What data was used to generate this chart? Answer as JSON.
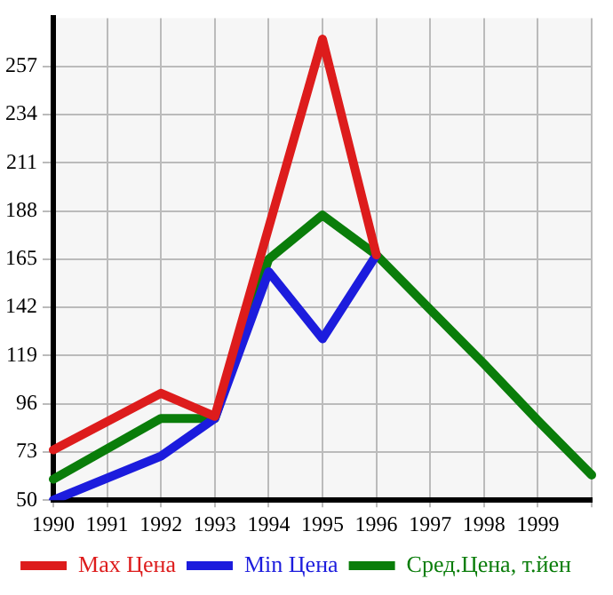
{
  "chart_data": {
    "type": "line",
    "categories": [
      "1990",
      "1991",
      "1992",
      "1993",
      "1994",
      "1995",
      "1996",
      "1997",
      "1998",
      "1999",
      null
    ],
    "series": [
      {
        "name": "Max Цена",
        "color": "#dd1c1c",
        "values": [
          74,
          null,
          101,
          90,
          null,
          270,
          167,
          null,
          null,
          null,
          null
        ]
      },
      {
        "name": "Min Цена",
        "color": "#1c1cdd",
        "values": [
          50,
          null,
          71,
          89,
          159,
          127,
          167,
          null,
          null,
          null,
          null
        ]
      },
      {
        "name": "Сред.Цена, т.йен",
        "color": "#0a7d0a",
        "values": [
          60,
          null,
          89,
          89,
          165,
          186,
          167,
          141,
          115,
          88,
          62
        ]
      }
    ],
    "ylim": [
      50,
      280
    ],
    "yticks": [
      50,
      73,
      96,
      119,
      142,
      165,
      188,
      211,
      234,
      257
    ],
    "grid": true,
    "legend": "bottom",
    "marker": "none",
    "line_style": "solid"
  }
}
